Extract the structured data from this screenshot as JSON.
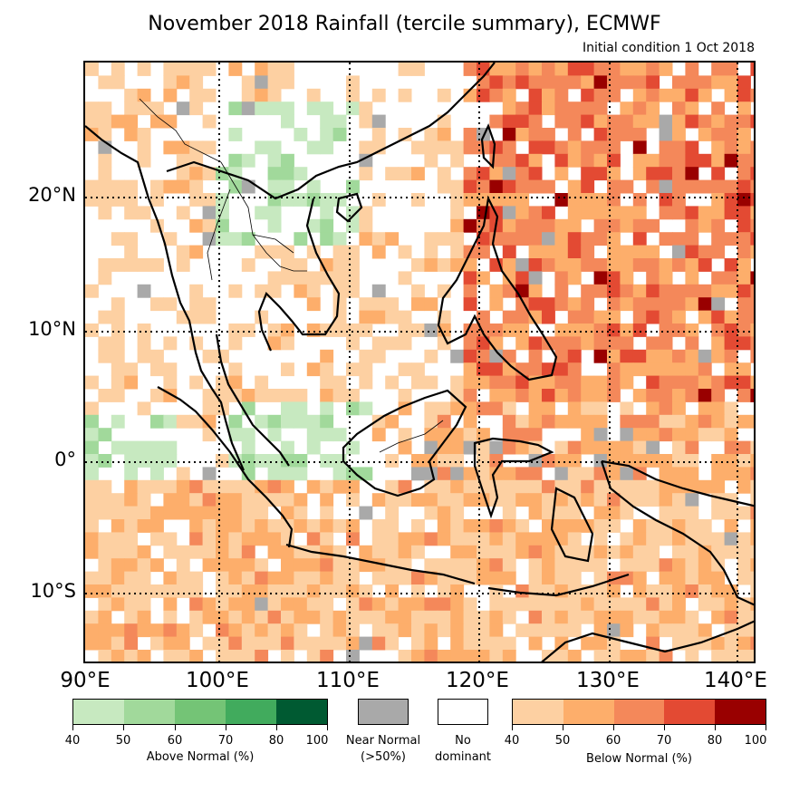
{
  "title": "November 2018 Rainfall (tercile summary), ECMWF",
  "subtitle": "Initial condition 1 Oct 2018",
  "lat_labels": [
    "20°N",
    "10°N",
    "0°",
    "10°S"
  ],
  "lon_labels": [
    "90°E",
    "100°E",
    "110°E",
    "120°E",
    "130°E",
    "140°E"
  ],
  "legend": {
    "above": {
      "label": "Above Normal (%)",
      "ticks": [
        "40",
        "50",
        "60",
        "70",
        "80",
        "100"
      ],
      "colors": [
        "#c7e9c0",
        "#a1d99b",
        "#74c476",
        "#41ab5d",
        "#005a32"
      ]
    },
    "near": {
      "label_line1": "Near Normal",
      "label_line2": "(>50%)",
      "color": "#a9a9a9"
    },
    "none": {
      "label_line1": "No",
      "label_line2": "dominant",
      "color": "#ffffff"
    },
    "below": {
      "label": "Below Normal (%)",
      "ticks": [
        "40",
        "50",
        "60",
        "70",
        "80",
        "100"
      ],
      "colors": [
        "#fdd0a2",
        "#fdae6b",
        "#f4885a",
        "#e34a33",
        "#990000"
      ]
    }
  }
}
